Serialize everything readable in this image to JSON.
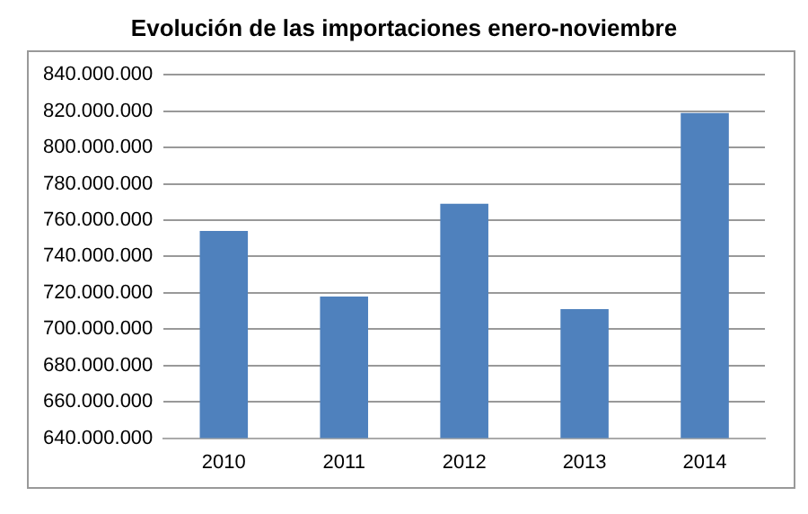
{
  "chart_data": {
    "type": "bar",
    "title": "Evolución de las importaciones enero-noviembre",
    "categories": [
      "2010",
      "2011",
      "2012",
      "2013",
      "2014"
    ],
    "values": [
      754000000,
      718000000,
      769000000,
      711000000,
      819000000
    ],
    "color": "#4f81bd",
    "ylim": [
      640000000,
      840000000
    ],
    "yticks": [
      {
        "value": 640000000,
        "label": "640.000.000"
      },
      {
        "value": 660000000,
        "label": "660.000.000"
      },
      {
        "value": 680000000,
        "label": "680.000.000"
      },
      {
        "value": 700000000,
        "label": "700.000.000"
      },
      {
        "value": 720000000,
        "label": "720.000.000"
      },
      {
        "value": 740000000,
        "label": "740.000.000"
      },
      {
        "value": 760000000,
        "label": "760.000.000"
      },
      {
        "value": 780000000,
        "label": "780.000.000"
      },
      {
        "value": 800000000,
        "label": "800.000.000"
      },
      {
        "value": 820000000,
        "label": "820.000.000"
      },
      {
        "value": 840000000,
        "label": "840.000.000"
      }
    ],
    "grid": "y",
    "legend": false
  }
}
